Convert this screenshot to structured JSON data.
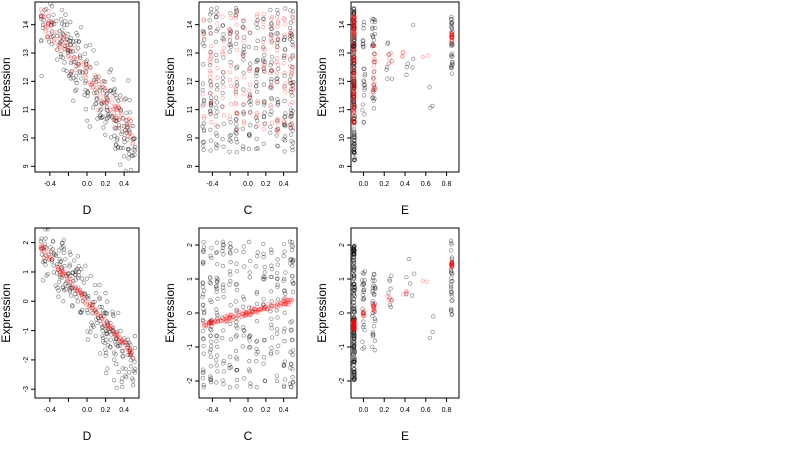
{
  "colors": {
    "observed": "#000000",
    "fitted": "#ff0000",
    "fitted_alpha": 0.35,
    "observed_alpha": 0.45
  },
  "chart_data": [
    {
      "type": "scatter",
      "xlabel": "D",
      "ylabel": "Expression",
      "xlim": [
        -0.56,
        0.56
      ],
      "ylim": [
        8.8,
        14.8
      ],
      "xticks": [
        -0.4,
        -0.2,
        0.0,
        0.2,
        0.4
      ],
      "xtick_labels": [
        "-0.4",
        "",
        "0.0",
        "0.2",
        "0.4"
      ],
      "yticks": [
        9,
        10,
        11,
        12,
        13,
        14
      ],
      "ytick_labels": [
        "9",
        "10",
        "11",
        "12",
        "13",
        "14"
      ],
      "series": [
        {
          "role": "observed",
          "pattern": "linear",
          "intercept": 12.2,
          "slope": -4.6,
          "noise": 0.65,
          "n": 260,
          "xrange": [
            -0.5,
            0.52
          ]
        },
        {
          "role": "fitted",
          "pattern": "linear",
          "intercept": 12.2,
          "slope": -4.2,
          "noise": 0.25,
          "n": 140,
          "xrange": [
            -0.5,
            0.52
          ]
        }
      ]
    },
    {
      "type": "scatter",
      "xlabel": "C",
      "ylabel": "Expression",
      "xlim": [
        -0.55,
        0.55
      ],
      "ylim": [
        8.8,
        14.8
      ],
      "xticks": [
        -0.4,
        -0.2,
        0.0,
        0.2,
        0.4
      ],
      "xtick_labels": [
        "-0.4",
        "",
        "0.0",
        "0.2",
        "0.4"
      ],
      "yticks": [
        9,
        10,
        11,
        12,
        13,
        14
      ],
      "ytick_labels": [
        "9",
        "10",
        "11",
        "12",
        "13",
        "14"
      ],
      "series": [
        {
          "role": "observed",
          "pattern": "columns",
          "columns": [
            -0.5,
            -0.42,
            -0.35,
            -0.28,
            -0.2,
            -0.13,
            -0.05,
            0.02,
            0.1,
            0.18,
            0.26,
            0.33,
            0.41,
            0.48,
            0.5
          ],
          "ymin": 9.5,
          "ymax": 14.6,
          "n": 300
        },
        {
          "role": "fitted",
          "pattern": "columns",
          "columns": [
            -0.5,
            -0.42,
            -0.35,
            -0.28,
            -0.2,
            -0.13,
            -0.05,
            0.02,
            0.1,
            0.18,
            0.26,
            0.33,
            0.41,
            0.48,
            0.5
          ],
          "ymin": 10.2,
          "ymax": 14.4,
          "n": 180
        }
      ]
    },
    {
      "type": "scatter",
      "xlabel": "E",
      "ylabel": "Expression",
      "xlim": [
        -0.12,
        0.92
      ],
      "ylim": [
        8.8,
        14.8
      ],
      "xticks": [
        0.0,
        0.2,
        0.4,
        0.6,
        0.8
      ],
      "xtick_labels": [
        "0.0",
        "0.2",
        "0.4",
        "0.6",
        "0.8"
      ],
      "yticks": [
        9,
        10,
        11,
        12,
        13,
        14
      ],
      "ytick_labels": [
        "9",
        "10",
        "11",
        "12",
        "13",
        "14"
      ],
      "series": [
        {
          "role": "observed",
          "pattern": "clusters",
          "clusters": [
            {
              "x": -0.09,
              "spread": 0.005,
              "ymin": 9.2,
              "ymax": 14.6,
              "n": 150
            },
            {
              "x": 0.0,
              "spread": 0.015,
              "ymin": 10.5,
              "ymax": 14.2,
              "n": 25
            },
            {
              "x": 0.1,
              "spread": 0.015,
              "ymin": 11.0,
              "ymax": 14.4,
              "n": 30
            },
            {
              "x": 0.25,
              "spread": 0.03,
              "ymin": 12.0,
              "ymax": 13.5,
              "n": 8
            },
            {
              "x": 0.45,
              "spread": 0.04,
              "ymin": 12.2,
              "ymax": 14.0,
              "n": 6
            },
            {
              "x": 0.65,
              "spread": 0.03,
              "ymin": 10.8,
              "ymax": 12.0,
              "n": 3
            },
            {
              "x": 0.85,
              "spread": 0.008,
              "ymin": 12.2,
              "ymax": 14.3,
              "n": 30
            }
          ]
        },
        {
          "role": "fitted",
          "pattern": "clusters",
          "clusters": [
            {
              "x": -0.09,
              "spread": 0.003,
              "ymin": 10.4,
              "ymax": 14.4,
              "n": 120
            },
            {
              "x": 0.1,
              "spread": 0.01,
              "ymin": 11.5,
              "ymax": 13.3,
              "n": 20
            },
            {
              "x": 0.25,
              "spread": 0.02,
              "ymin": 12.6,
              "ymax": 13.0,
              "n": 5
            },
            {
              "x": 0.4,
              "spread": 0.03,
              "ymin": 12.8,
              "ymax": 13.1,
              "n": 4
            },
            {
              "x": 0.6,
              "spread": 0.03,
              "ymin": 12.8,
              "ymax": 13.0,
              "n": 2
            },
            {
              "x": 0.85,
              "spread": 0.005,
              "ymin": 13.4,
              "ymax": 13.7,
              "n": 20
            }
          ]
        }
      ]
    },
    {
      "type": "scatter",
      "xlabel": "D",
      "ylabel": "Expression",
      "xlim": [
        -0.56,
        0.56
      ],
      "ylim": [
        -3.3,
        2.5
      ],
      "xticks": [
        -0.4,
        -0.2,
        0.0,
        0.2,
        0.4
      ],
      "xtick_labels": [
        "-0.4",
        "",
        "0.0",
        "0.2",
        "0.4"
      ],
      "yticks": [
        -3,
        -2,
        -1,
        0,
        1,
        2
      ],
      "ytick_labels": [
        "-3",
        "-2",
        "-1",
        "0",
        "1",
        "2"
      ],
      "series": [
        {
          "role": "observed",
          "pattern": "linear",
          "intercept": -0.1,
          "slope": -4.4,
          "noise": 0.55,
          "n": 260,
          "xrange": [
            -0.5,
            0.52
          ]
        },
        {
          "role": "fitted",
          "pattern": "linear",
          "intercept": 0.0,
          "slope": -3.7,
          "noise": 0.07,
          "n": 140,
          "xrange": [
            -0.5,
            0.52
          ]
        }
      ]
    },
    {
      "type": "scatter",
      "xlabel": "C",
      "ylabel": "Expression",
      "xlim": [
        -0.55,
        0.55
      ],
      "ylim": [
        -2.5,
        2.5
      ],
      "xticks": [
        -0.4,
        -0.2,
        0.0,
        0.2,
        0.4
      ],
      "xtick_labels": [
        "-0.4",
        "",
        "0.0",
        "0.2",
        "0.4"
      ],
      "yticks": [
        -2,
        -1,
        0,
        1,
        2
      ],
      "ytick_labels": [
        "-2",
        "-1",
        "0",
        "1",
        "2"
      ],
      "series": [
        {
          "role": "observed",
          "pattern": "columns",
          "columns": [
            -0.5,
            -0.42,
            -0.35,
            -0.28,
            -0.2,
            -0.13,
            -0.05,
            0.02,
            0.1,
            0.18,
            0.26,
            0.33,
            0.41,
            0.48,
            0.5
          ],
          "ymin": -2.2,
          "ymax": 2.1,
          "n": 300
        },
        {
          "role": "fitted",
          "pattern": "linear",
          "intercept": 0.0,
          "slope": 0.72,
          "noise": 0.05,
          "n": 150,
          "xrange": [
            -0.5,
            0.5
          ]
        }
      ]
    },
    {
      "type": "scatter",
      "xlabel": "E",
      "ylabel": "Expression",
      "xlim": [
        -0.12,
        0.92
      ],
      "ylim": [
        -2.5,
        2.5
      ],
      "xticks": [
        0.0,
        0.2,
        0.4,
        0.6,
        0.8
      ],
      "xtick_labels": [
        "0.0",
        "0.2",
        "0.4",
        "0.6",
        "0.8"
      ],
      "yticks": [
        -2,
        -1,
        0,
        1,
        2
      ],
      "ytick_labels": [
        "-2",
        "-1",
        "0",
        "1",
        "2"
      ],
      "series": [
        {
          "role": "observed",
          "pattern": "clusters",
          "clusters": [
            {
              "x": -0.09,
              "spread": 0.006,
              "ymin": -2.0,
              "ymax": 2.0,
              "n": 160
            },
            {
              "x": 0.0,
              "spread": 0.015,
              "ymin": -1.2,
              "ymax": 1.3,
              "n": 25
            },
            {
              "x": 0.1,
              "spread": 0.015,
              "ymin": -1.3,
              "ymax": 1.5,
              "n": 30
            },
            {
              "x": 0.25,
              "spread": 0.03,
              "ymin": 0.0,
              "ymax": 1.3,
              "n": 8
            },
            {
              "x": 0.45,
              "spread": 0.04,
              "ymin": 0.4,
              "ymax": 1.6,
              "n": 6
            },
            {
              "x": 0.65,
              "spread": 0.03,
              "ymin": -0.9,
              "ymax": 0.2,
              "n": 3
            },
            {
              "x": 0.85,
              "spread": 0.008,
              "ymin": -0.1,
              "ymax": 2.2,
              "n": 30
            }
          ]
        },
        {
          "role": "fitted",
          "pattern": "clusters",
          "clusters": [
            {
              "x": -0.09,
              "spread": 0.003,
              "ymin": -0.5,
              "ymax": -0.2,
              "n": 60
            },
            {
              "x": 0.0,
              "spread": 0.006,
              "ymin": -0.1,
              "ymax": 0.05,
              "n": 10
            },
            {
              "x": 0.1,
              "spread": 0.008,
              "ymin": 0.05,
              "ymax": 0.25,
              "n": 14
            },
            {
              "x": 0.25,
              "spread": 0.02,
              "ymin": 0.35,
              "ymax": 0.5,
              "n": 5
            },
            {
              "x": 0.4,
              "spread": 0.03,
              "ymin": 0.5,
              "ymax": 0.65,
              "n": 4
            },
            {
              "x": 0.6,
              "spread": 0.03,
              "ymin": 0.9,
              "ymax": 1.0,
              "n": 2
            },
            {
              "x": 0.85,
              "spread": 0.005,
              "ymin": 1.35,
              "ymax": 1.55,
              "n": 20
            }
          ]
        }
      ]
    }
  ]
}
